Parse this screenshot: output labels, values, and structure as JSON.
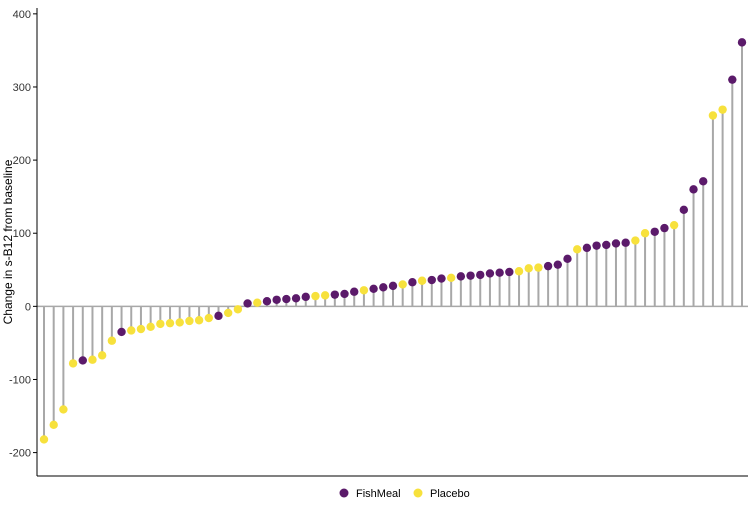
{
  "chart_data": {
    "type": "lollipop",
    "title": "",
    "xlabel": "",
    "ylabel": "Change in s-B12 from baseline",
    "ylim": [
      -232,
      408
    ],
    "yticks": [
      -200,
      -100,
      0,
      100,
      200,
      300,
      400
    ],
    "ytick_labels": [
      "-200",
      "-100",
      "0",
      "100",
      "200",
      "300",
      "400"
    ],
    "grid": false,
    "legend_position": "bottom",
    "series": [
      {
        "name": "FishMeal",
        "color": "#5b1a6a"
      },
      {
        "name": "Placebo",
        "color": "#f7e13c"
      }
    ],
    "points": [
      {
        "group": "Placebo",
        "value": -182
      },
      {
        "group": "Placebo",
        "value": -162
      },
      {
        "group": "Placebo",
        "value": -141
      },
      {
        "group": "Placebo",
        "value": -78
      },
      {
        "group": "FishMeal",
        "value": -74
      },
      {
        "group": "Placebo",
        "value": -73
      },
      {
        "group": "Placebo",
        "value": -67
      },
      {
        "group": "Placebo",
        "value": -47
      },
      {
        "group": "FishMeal",
        "value": -35
      },
      {
        "group": "Placebo",
        "value": -33
      },
      {
        "group": "Placebo",
        "value": -31
      },
      {
        "group": "Placebo",
        "value": -28
      },
      {
        "group": "Placebo",
        "value": -24
      },
      {
        "group": "Placebo",
        "value": -23
      },
      {
        "group": "Placebo",
        "value": -22
      },
      {
        "group": "Placebo",
        "value": -20
      },
      {
        "group": "Placebo",
        "value": -19
      },
      {
        "group": "Placebo",
        "value": -16
      },
      {
        "group": "FishMeal",
        "value": -13
      },
      {
        "group": "Placebo",
        "value": -9
      },
      {
        "group": "Placebo",
        "value": -4
      },
      {
        "group": "FishMeal",
        "value": 4
      },
      {
        "group": "Placebo",
        "value": 5
      },
      {
        "group": "FishMeal",
        "value": 7
      },
      {
        "group": "FishMeal",
        "value": 9
      },
      {
        "group": "FishMeal",
        "value": 10
      },
      {
        "group": "FishMeal",
        "value": 11
      },
      {
        "group": "FishMeal",
        "value": 13
      },
      {
        "group": "Placebo",
        "value": 14
      },
      {
        "group": "Placebo",
        "value": 15
      },
      {
        "group": "FishMeal",
        "value": 16
      },
      {
        "group": "FishMeal",
        "value": 17
      },
      {
        "group": "FishMeal",
        "value": 20
      },
      {
        "group": "Placebo",
        "value": 22
      },
      {
        "group": "FishMeal",
        "value": 24
      },
      {
        "group": "FishMeal",
        "value": 26
      },
      {
        "group": "FishMeal",
        "value": 28
      },
      {
        "group": "Placebo",
        "value": 30
      },
      {
        "group": "FishMeal",
        "value": 33
      },
      {
        "group": "Placebo",
        "value": 35
      },
      {
        "group": "FishMeal",
        "value": 36
      },
      {
        "group": "FishMeal",
        "value": 38
      },
      {
        "group": "Placebo",
        "value": 39
      },
      {
        "group": "FishMeal",
        "value": 41
      },
      {
        "group": "FishMeal",
        "value": 42
      },
      {
        "group": "FishMeal",
        "value": 43
      },
      {
        "group": "FishMeal",
        "value": 45
      },
      {
        "group": "FishMeal",
        "value": 46
      },
      {
        "group": "FishMeal",
        "value": 47
      },
      {
        "group": "Placebo",
        "value": 48
      },
      {
        "group": "Placebo",
        "value": 52
      },
      {
        "group": "Placebo",
        "value": 53
      },
      {
        "group": "FishMeal",
        "value": 55
      },
      {
        "group": "FishMeal",
        "value": 57
      },
      {
        "group": "FishMeal",
        "value": 65
      },
      {
        "group": "Placebo",
        "value": 78
      },
      {
        "group": "FishMeal",
        "value": 80
      },
      {
        "group": "FishMeal",
        "value": 83
      },
      {
        "group": "FishMeal",
        "value": 84
      },
      {
        "group": "FishMeal",
        "value": 86
      },
      {
        "group": "FishMeal",
        "value": 87
      },
      {
        "group": "Placebo",
        "value": 90
      },
      {
        "group": "Placebo",
        "value": 100
      },
      {
        "group": "FishMeal",
        "value": 102
      },
      {
        "group": "FishMeal",
        "value": 107
      },
      {
        "group": "Placebo",
        "value": 111
      },
      {
        "group": "FishMeal",
        "value": 132
      },
      {
        "group": "FishMeal",
        "value": 160
      },
      {
        "group": "FishMeal",
        "value": 171
      },
      {
        "group": "Placebo",
        "value": 261
      },
      {
        "group": "Placebo",
        "value": 269
      },
      {
        "group": "FishMeal",
        "value": 310
      },
      {
        "group": "FishMeal",
        "value": 361
      }
    ]
  },
  "colors": {
    "stem": "#a8a8a8",
    "axis": "#000000",
    "zero_line": "#a8a8a8"
  }
}
